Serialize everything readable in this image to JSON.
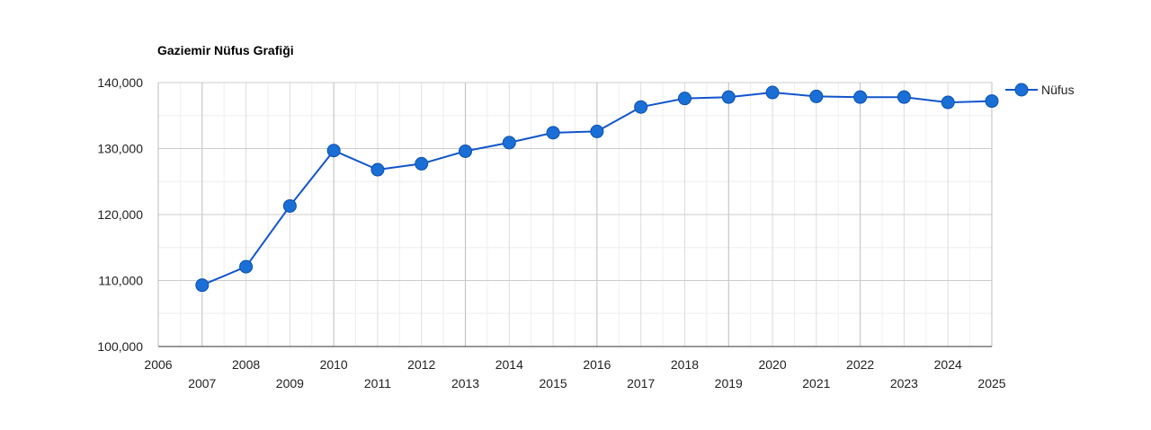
{
  "chart_data": {
    "type": "line",
    "title": "Gaziemir Nüfus Grafiği",
    "xlabel": "",
    "ylabel": "",
    "xlim": [
      2006,
      2025
    ],
    "ylim": [
      100000,
      140000
    ],
    "y_ticks": [
      "100,000",
      "110,000",
      "120,000",
      "130,000",
      "140,000"
    ],
    "x_ticks_upper": [
      "2006",
      "2008",
      "2010",
      "2012",
      "2014",
      "2016",
      "2018",
      "2020",
      "2022",
      "2024"
    ],
    "x_ticks_lower": [
      "2007",
      "2009",
      "2011",
      "2013",
      "2015",
      "2017",
      "2019",
      "2021",
      "2023",
      "2025"
    ],
    "x": [
      2007,
      2008,
      2009,
      2010,
      2011,
      2012,
      2013,
      2014,
      2015,
      2016,
      2017,
      2018,
      2019,
      2020,
      2021,
      2022,
      2023,
      2024,
      2025
    ],
    "series": [
      {
        "name": "Nüfus",
        "color": "#1155cc",
        "marker_color": "#1a6fd6",
        "values": [
          109300,
          112100,
          121300,
          129700,
          126800,
          127700,
          129600,
          130900,
          132400,
          132600,
          136300,
          137600,
          137800,
          138500,
          137900,
          137800,
          137800,
          137000,
          137200
        ]
      }
    ],
    "grid": true,
    "legend_position": "right"
  }
}
